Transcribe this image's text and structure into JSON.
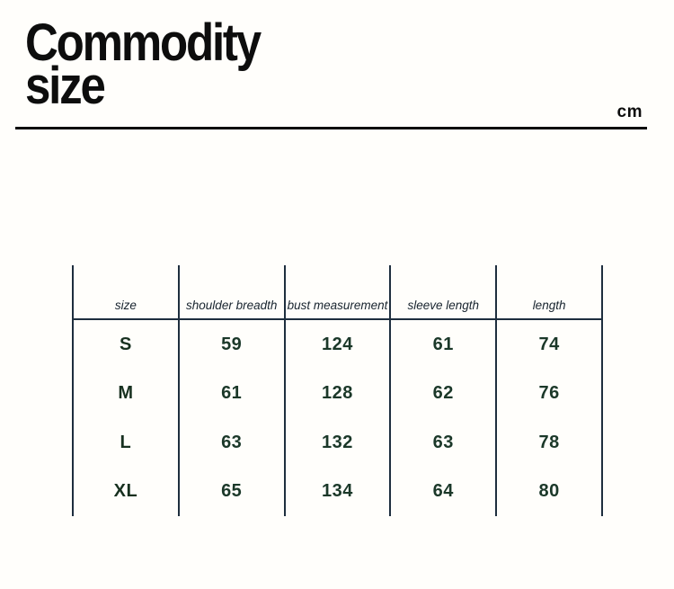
{
  "page_title": {
    "line1": "Commodity",
    "line2": "size"
  },
  "unit_label": "cm",
  "chart_data": {
    "type": "table",
    "title": "Commodity size",
    "unit": "cm",
    "columns": [
      "size",
      "shoulder breadth",
      "bust measurement",
      "sleeve length",
      "length"
    ],
    "rows": [
      [
        "S",
        59,
        124,
        61,
        74
      ],
      [
        "M",
        61,
        128,
        62,
        76
      ],
      [
        "L",
        63,
        132,
        63,
        78
      ],
      [
        "XL",
        65,
        134,
        64,
        80
      ]
    ]
  },
  "colors": {
    "background": "#fffefb",
    "title_text": "#0d0d0d",
    "table_border": "#1e2e3e",
    "header_text": "#18242f",
    "value_text": "#1b3829"
  }
}
